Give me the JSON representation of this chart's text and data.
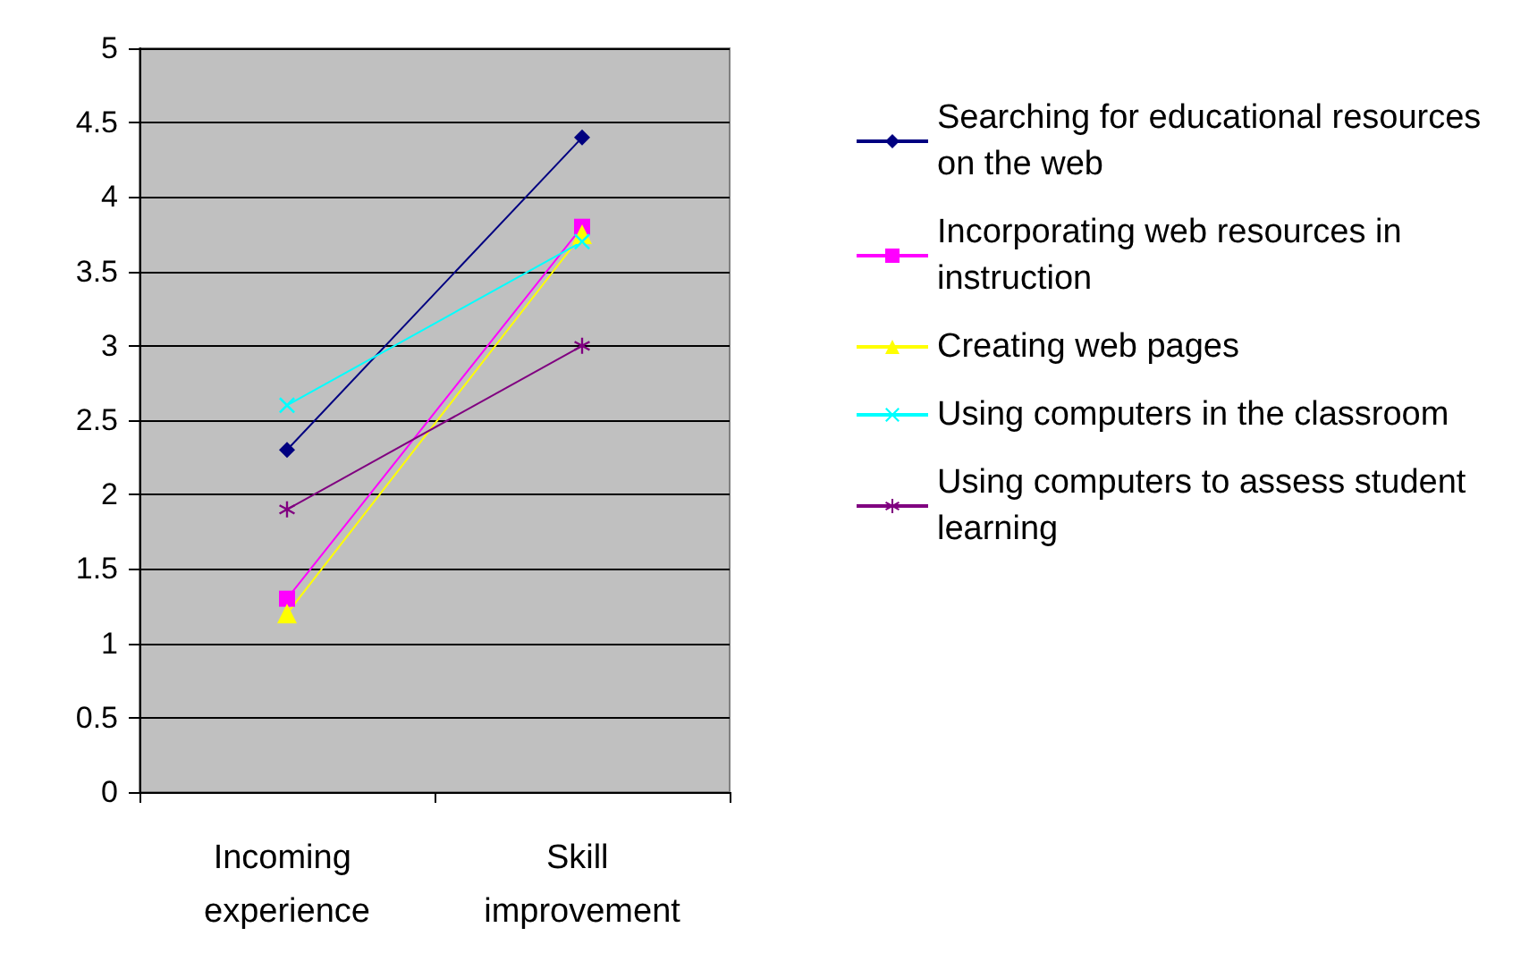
{
  "chart_data": {
    "type": "line",
    "categories": [
      "Incoming experience",
      "Skill improvement"
    ],
    "series": [
      {
        "name": "Searching for educational resources on the web",
        "color": "#000080",
        "marker": "diamond",
        "values": [
          2.3,
          4.4
        ]
      },
      {
        "name": "Incorporating web resources in instruction",
        "color": "#ff00ff",
        "marker": "square",
        "values": [
          1.3,
          3.8
        ]
      },
      {
        "name": "Creating web pages",
        "color": "#ffff00",
        "marker": "triangle",
        "values": [
          1.2,
          3.75
        ]
      },
      {
        "name": "Using computers in the classroom",
        "color": "#00ffff",
        "marker": "cross",
        "values": [
          2.6,
          3.7
        ]
      },
      {
        "name": "Using computers to assess student learning",
        "color": "#800080",
        "marker": "star",
        "values": [
          1.9,
          3.0
        ]
      }
    ],
    "ylim": [
      0,
      5
    ],
    "yticks": [
      0,
      0.5,
      1,
      1.5,
      2,
      2.5,
      3,
      3.5,
      4,
      4.5,
      5
    ],
    "grid": "y",
    "legend": "right"
  }
}
